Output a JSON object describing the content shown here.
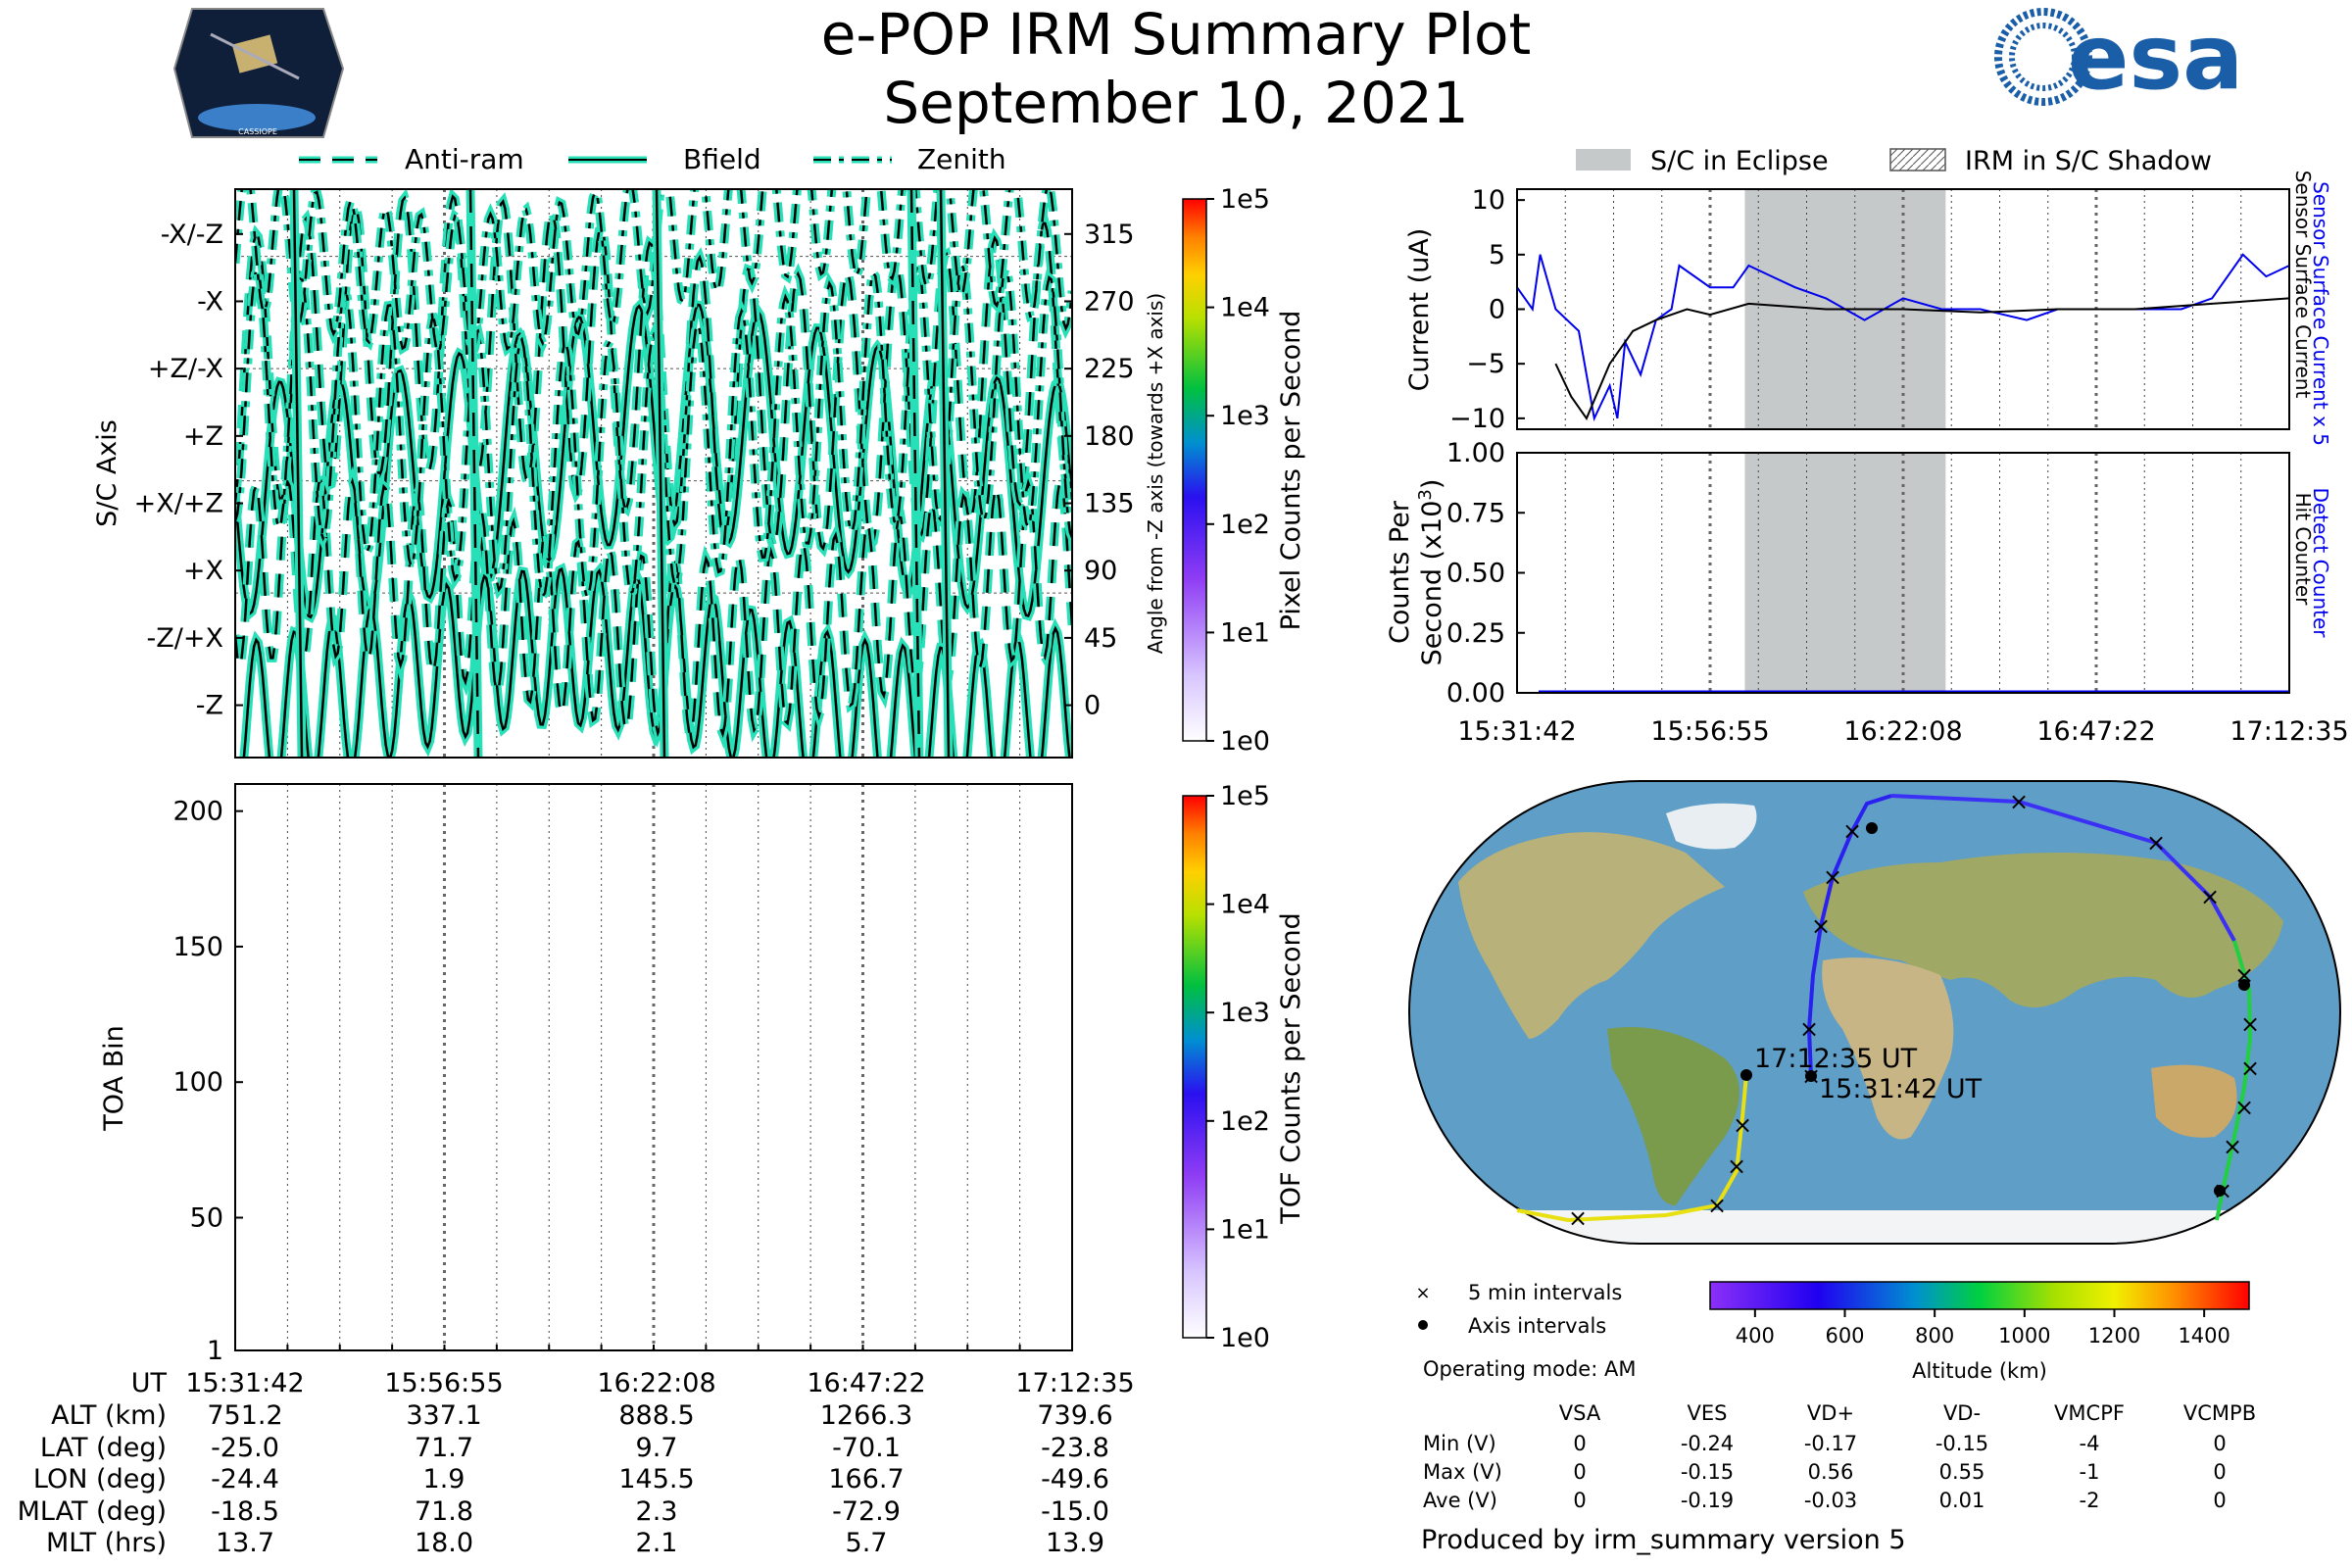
{
  "header": {
    "title": "e-POP IRM Summary Plot",
    "date": "September 10, 2021",
    "cassiope_label": "CASSIOPE",
    "esa_label": "esa"
  },
  "colors": {
    "trace_fill": "#27e0b8",
    "trace_edge": "#000000",
    "eclipse": "#c6c9c9",
    "sensor_current_x5": "#0000ee",
    "sensor_current": "#000000",
    "ocean": "#5f9ec6"
  },
  "ut_axis": [
    "15:31:42",
    "15:56:55",
    "16:22:08",
    "16:47:22",
    "17:12:35"
  ],
  "axis_plot": {
    "legend": [
      "Anti-ram",
      "Bfield",
      "Zenith"
    ],
    "ylabel": "S/C Axis",
    "left_ticks": [
      "-X/-Z",
      "-X",
      "+Z/-X",
      "+Z",
      "+X/+Z",
      "+X",
      "-Z/+X",
      "-Z"
    ],
    "right_ticks": [
      "315",
      "270",
      "225",
      "180",
      "135",
      "90",
      "45",
      "0"
    ],
    "right_label": "Angle from -Z axis (towards +X axis)"
  },
  "pixel_colorbar": {
    "label": "Pixel Counts per Second",
    "ticks": [
      "1e5",
      "1e4",
      "1e3",
      "1e2",
      "1e1",
      "1e0"
    ]
  },
  "toa_plot": {
    "ylabel": "TOA Bin",
    "ticks": [
      "200",
      "150",
      "100",
      "50",
      "1"
    ]
  },
  "tof_colorbar": {
    "label": "TOF Counts per Second",
    "ticks": [
      "1e5",
      "1e4",
      "1e3",
      "1e2",
      "1e1",
      "1e0"
    ]
  },
  "ephemeris_table": {
    "row_labels": [
      "UT",
      "ALT (km)",
      "LAT (deg)",
      "LON (deg)",
      "MLAT (deg)",
      "MLT (hrs)"
    ],
    "columns": [
      [
        "15:31:42",
        "751.2",
        "-25.0",
        "-24.4",
        "-18.5",
        "13.7"
      ],
      [
        "15:56:55",
        "337.1",
        "71.7",
        "1.9",
        "71.8",
        "18.0"
      ],
      [
        "16:22:08",
        "888.5",
        "9.7",
        "145.5",
        "2.3",
        "2.1"
      ],
      [
        "16:47:22",
        "1266.3",
        "-70.1",
        "166.7",
        "-72.9",
        "5.7"
      ],
      [
        "17:12:35",
        "739.6",
        "-23.8",
        "-49.6",
        "-15.0",
        "13.9"
      ]
    ]
  },
  "eclipse_legend": {
    "eclipse": "S/C in Eclipse",
    "shadow": "IRM in S/C Shadow"
  },
  "current_plot": {
    "ylabel": "Current (uA)",
    "ticks": [
      "10",
      "5",
      "0",
      "−5",
      "−10"
    ],
    "right_label_1": "Sensor Surface Current x 5",
    "right_label_2": "Sensor Surface Current"
  },
  "counts_plot": {
    "ylabel_1": "Counts Per",
    "ylabel_2": "Second (x10",
    "ylabel_sup": "3",
    "ylabel_end": ")",
    "ticks": [
      "1.00",
      "0.75",
      "0.50",
      "0.25",
      "0.00"
    ],
    "right_label_1": "Detect Counter",
    "right_label_2": "Hit Counter"
  },
  "map": {
    "start_label": "15:31:42 UT",
    "end_label": "17:12:35 UT",
    "legend_5min": "5 min intervals",
    "legend_axis": "Axis intervals",
    "operating_mode": "Operating mode: AM"
  },
  "altitude_colorbar": {
    "label": "Altitude (km)",
    "ticks": [
      "400",
      "600",
      "800",
      "1000",
      "1200",
      "1400"
    ]
  },
  "voltage_table": {
    "headers": [
      "VSA",
      "VES",
      "VD+",
      "VD-",
      "VMCPF",
      "VCMPB"
    ],
    "rows": [
      {
        "label": "Min (V)",
        "values": [
          "0",
          "-0.24",
          "-0.17",
          "-0.15",
          "-4",
          "0"
        ]
      },
      {
        "label": "Max (V)",
        "values": [
          "0",
          "-0.15",
          "0.56",
          "0.55",
          "-1",
          "0"
        ]
      },
      {
        "label": "Ave (V)",
        "values": [
          "0",
          "-0.19",
          "-0.03",
          "0.01",
          "-2",
          "0"
        ]
      }
    ]
  },
  "footer": "Produced by irm_summary version 5",
  "chart_data": [
    {
      "type": "line",
      "title": "",
      "ylabel": "Current (uA)",
      "ylim": [
        -11,
        11
      ],
      "eclipse_fraction": [
        0.295,
        0.555
      ],
      "series": [
        {
          "name": "Sensor Surface Current x 5",
          "x": [
            0.0,
            0.02,
            0.03,
            0.05,
            0.08,
            0.1,
            0.12,
            0.13,
            0.14,
            0.16,
            0.18,
            0.2,
            0.21,
            0.25,
            0.28,
            0.3,
            0.33,
            0.36,
            0.4,
            0.45,
            0.5,
            0.55,
            0.6,
            0.66,
            0.7,
            0.74,
            0.78,
            0.82,
            0.86,
            0.9,
            0.94,
            0.97,
            1.0
          ],
          "values": [
            2,
            0,
            5,
            0,
            -2,
            -10,
            -7,
            -10,
            -3,
            -6,
            -1,
            0,
            4,
            2,
            2,
            4,
            3,
            2,
            1,
            -1,
            1,
            0,
            0,
            -1,
            0,
            0,
            0,
            0,
            0,
            1,
            5,
            3,
            4
          ]
        },
        {
          "name": "Sensor Surface Current",
          "x": [
            0.05,
            0.07,
            0.09,
            0.12,
            0.15,
            0.18,
            0.22,
            0.25,
            0.3,
            0.4,
            0.5,
            0.6,
            0.7,
            0.8,
            0.9,
            1.0
          ],
          "values": [
            -5,
            -8,
            -10,
            -5,
            -2,
            -1,
            0,
            -0.5,
            0.5,
            0,
            0,
            -0.3,
            0,
            0,
            0.5,
            1
          ]
        }
      ]
    },
    {
      "type": "line",
      "ylabel": "Counts Per Second (x10^3)",
      "ylim": [
        0,
        1
      ],
      "series": [
        {
          "name": "Detect Counter",
          "x": [
            0.025,
            1.0
          ],
          "values": [
            0,
            0
          ]
        },
        {
          "name": "Hit Counter",
          "x": [
            0.025,
            1.0
          ],
          "values": [
            0,
            0
          ]
        }
      ]
    },
    {
      "type": "heatmap",
      "ylabel": "TOA Bin",
      "ylim": [
        1,
        210
      ],
      "values": []
    }
  ]
}
